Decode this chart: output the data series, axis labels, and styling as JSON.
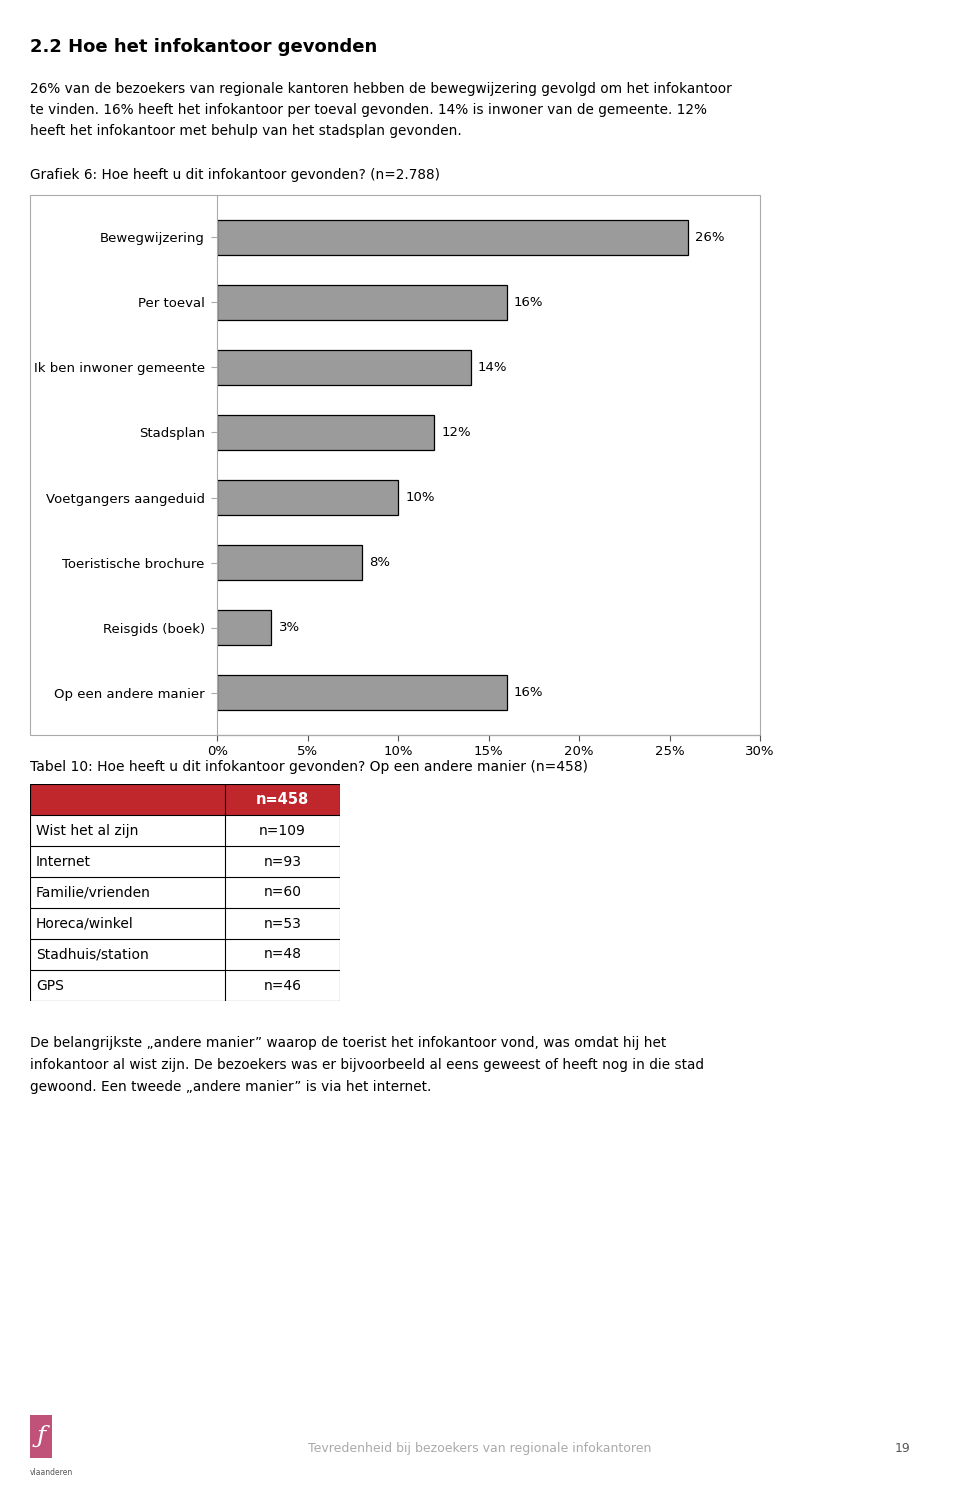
{
  "title_section": "2.2 Hoe het infokantoor gevonden",
  "body_lines": [
    "26% van de bezoekers van regionale kantoren hebben de bewegwijzering gevolgd om het infokantoor",
    "te vinden. 16% heeft het infokantoor per toeval gevonden. 14% is inwoner van de gemeente. 12%",
    "heeft het infokantoor met behulp van het stadsplan gevonden."
  ],
  "chart_title": "Grafiek 6: Hoe heeft u dit infokantoor gevonden? (n=2.788)",
  "categories": [
    "Bewegwijzering",
    "Per toeval",
    "Ik ben inwoner gemeente",
    "Stadsplan",
    "Voetgangers aangeduid",
    "Toeristische brochure",
    "Reisgids (boek)",
    "Op een andere manier"
  ],
  "values": [
    26,
    16,
    14,
    12,
    10,
    8,
    3,
    16
  ],
  "bar_color": "#9b9b9b",
  "bar_edge_color": "#000000",
  "xlim_max": 30,
  "xticks": [
    0,
    5,
    10,
    15,
    20,
    25,
    30
  ],
  "xtick_labels": [
    "0%",
    "5%",
    "10%",
    "15%",
    "20%",
    "25%",
    "30%"
  ],
  "table_title": "Tabel 10: Hoe heeft u dit infokantoor gevonden? Op een andere manier (n=458)",
  "table_header_val": "n=458",
  "table_header_bg": "#c0272d",
  "table_header_text_color": "#ffffff",
  "table_rows": [
    [
      "Wist het al zijn",
      "n=109"
    ],
    [
      "Internet",
      "n=93"
    ],
    [
      "Familie/vrienden",
      "n=60"
    ],
    [
      "Horeca/winkel",
      "n=53"
    ],
    [
      "Stadhuis/station",
      "n=48"
    ],
    [
      "GPS",
      "n=46"
    ]
  ],
  "bottom_lines": [
    "De belangrijkste „andere manier” waarop de toerist het infokantoor vond, was omdat hij het",
    "infokantoor al wist zijn. De bezoekers was er bijvoorbeeld al eens geweest of heeft nog in die stad",
    "gewoond. Een tweede „andere manier” is via het internet."
  ],
  "footer_text": "Tevredenheid bij bezoekers van regionale infokantoren",
  "page_number": "19",
  "logo_color": "#c0527a",
  "background_color": "#ffffff"
}
